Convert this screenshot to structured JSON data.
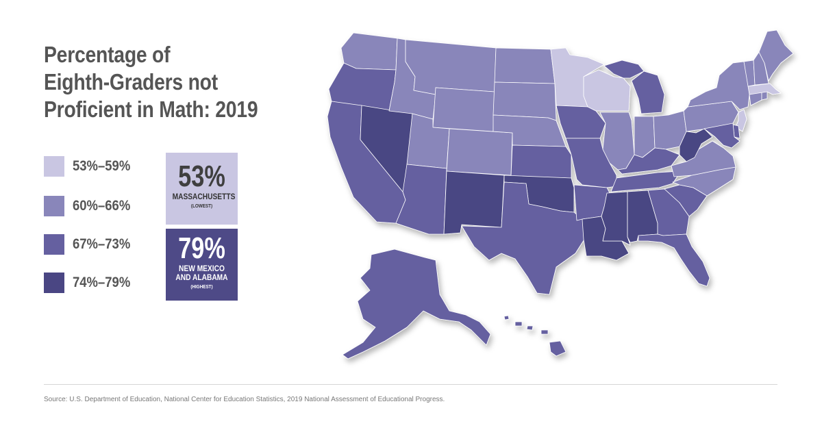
{
  "title": {
    "line1": "Percentage of",
    "line2": "Eighth-Graders not",
    "line3": "Proficient in Math: 2019"
  },
  "legend": [
    {
      "label": "53%–59%",
      "color": "#c9c6e2"
    },
    {
      "label": "60%–66%",
      "color": "#8986ba"
    },
    {
      "label": "67%–73%",
      "color": "#6560a0"
    },
    {
      "label": "74%–79%",
      "color": "#4a4683"
    }
  ],
  "callouts": {
    "lowest": {
      "value": "53%",
      "state": "MASSACHUSETTS",
      "note": "(LOWEST)"
    },
    "highest": {
      "value": "79%",
      "state": "NEW MEXICO AND ALABAMA",
      "note": "(HIGHEST)"
    }
  },
  "map": {
    "bin_colors": [
      "#c9c6e2",
      "#8986ba",
      "#6560a0",
      "#4a4683"
    ],
    "state_bins": {
      "WA": 1,
      "OR": 2,
      "CA": 2,
      "NV": 3,
      "ID": 1,
      "MT": 1,
      "WY": 1,
      "UT": 1,
      "AZ": 2,
      "CO": 1,
      "NM": 3,
      "ND": 1,
      "SD": 1,
      "NE": 1,
      "KS": 2,
      "OK": 3,
      "TX": 2,
      "MN": 0,
      "IA": 2,
      "MO": 2,
      "AR": 2,
      "LA": 3,
      "WI": 0,
      "IL": 1,
      "MI": 2,
      "IN": 1,
      "OH": 1,
      "KY": 2,
      "TN": 2,
      "MS": 3,
      "AL": 3,
      "GA": 2,
      "FL": 2,
      "SC": 2,
      "NC": 1,
      "VA": 1,
      "WV": 3,
      "PA": 1,
      "NY": 1,
      "NJ": 0,
      "DE": 2,
      "MD": 2,
      "CT": 1,
      "RI": 1,
      "MA": 0,
      "VT": 1,
      "NH": 1,
      "ME": 1,
      "AK": 2,
      "HI": 2
    }
  },
  "source": "Source: U.S. Department of Education, National Center for Education Statistics, 2019 National Assessment of Educational Progress."
}
